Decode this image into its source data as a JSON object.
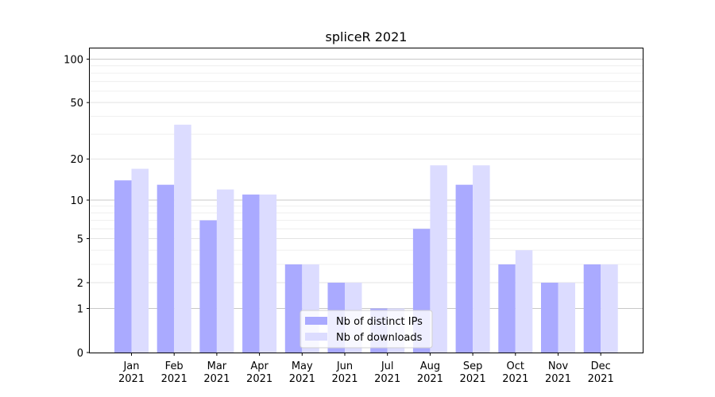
{
  "chart_data": {
    "type": "bar",
    "title": "spliceR 2021",
    "xlabel": "",
    "ylabel": "",
    "y_scale": "log(1+y)",
    "ylim": [
      0,
      120
    ],
    "y_ticks": [
      0,
      1,
      2,
      5,
      10,
      20,
      50,
      100
    ],
    "y_tick_labels": [
      "0",
      "1",
      "2",
      "5",
      "10",
      "20",
      "50",
      "100"
    ],
    "categories": [
      "Jan\n2021",
      "Feb\n2021",
      "Mar\n2021",
      "Apr\n2021",
      "May\n2021",
      "Jun\n2021",
      "Jul\n2021",
      "Aug\n2021",
      "Sep\n2021",
      "Oct\n2021",
      "Nov\n2021",
      "Dec\n2021"
    ],
    "series": [
      {
        "name": "Nb of distinct IPs",
        "color": "#aaaaff",
        "values": [
          14,
          13,
          7,
          11,
          3,
          2,
          1,
          6,
          13,
          3,
          2,
          3
        ]
      },
      {
        "name": "Nb of downloads",
        "color": "#dcdcff",
        "values": [
          17,
          35,
          12,
          11,
          3,
          2,
          1,
          18,
          18,
          4,
          2,
          3
        ]
      }
    ],
    "grid": "horizontal",
    "legend": "bottom-center"
  }
}
